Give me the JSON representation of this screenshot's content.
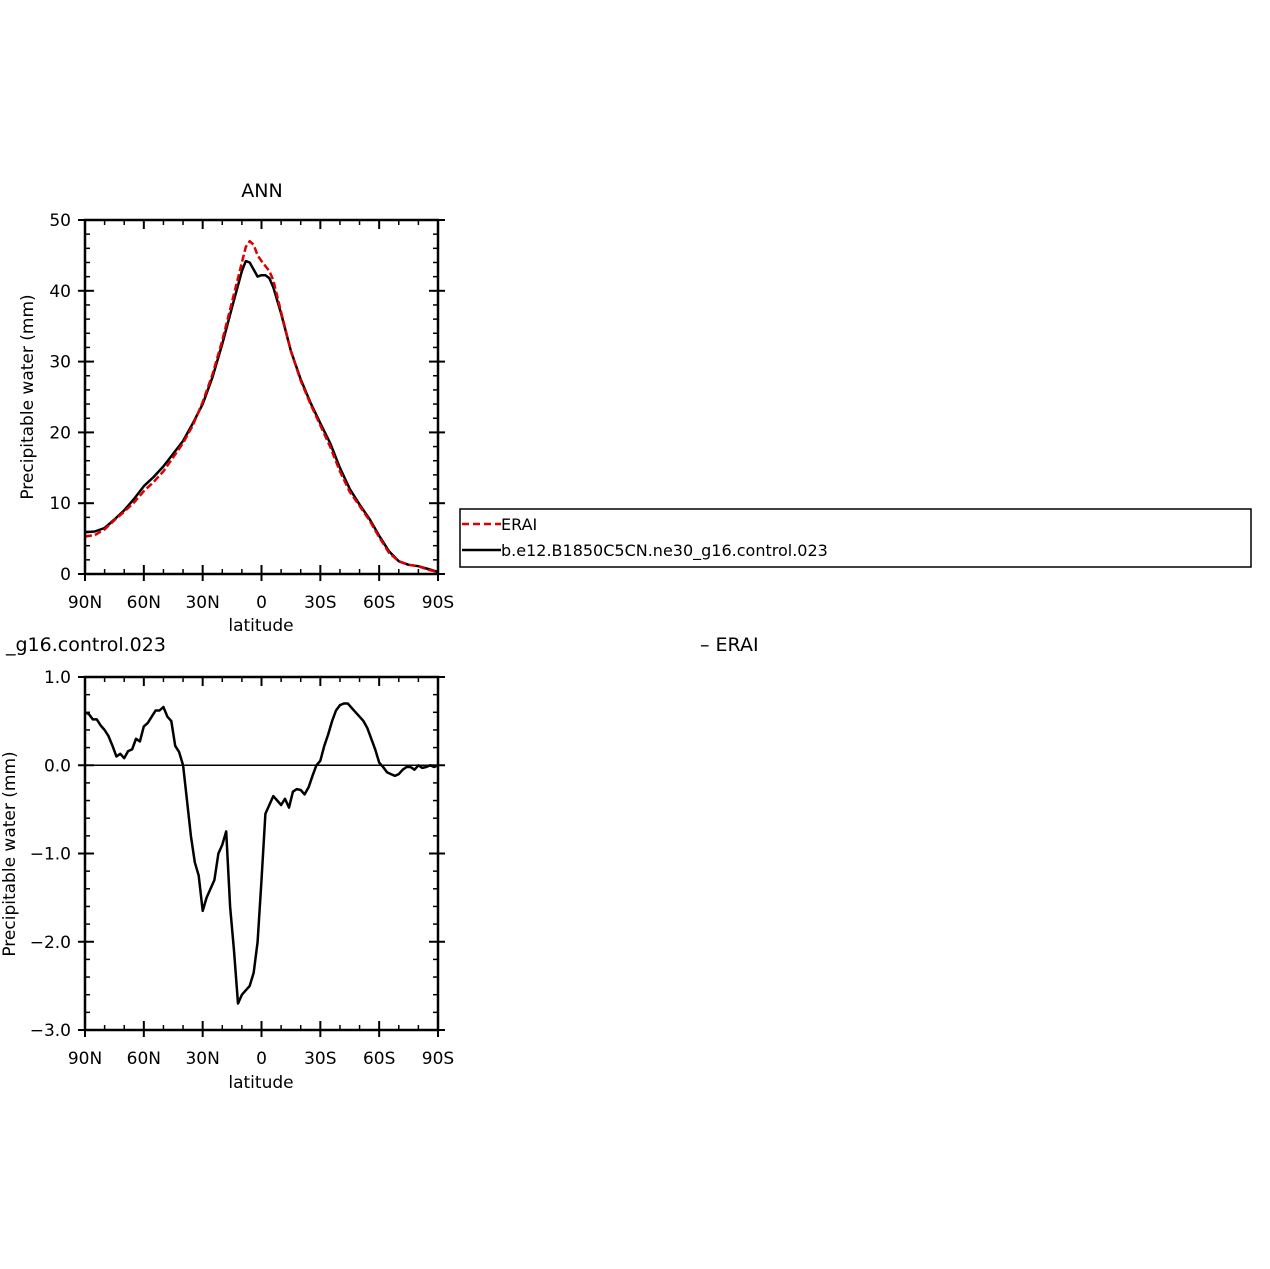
{
  "chart_data": [
    {
      "type": "line",
      "title": "ANN",
      "xlabel": "latitude",
      "ylabel": "Precipitable water (mm)",
      "xlim": [
        90,
        -90
      ],
      "ylim": [
        0,
        50
      ],
      "xticks": [
        90,
        60,
        30,
        0,
        -30,
        -60,
        -90
      ],
      "xtick_labels": [
        "90N",
        "60N",
        "30N",
        "0",
        "30S",
        "60S",
        "90S"
      ],
      "yticks": [
        0,
        10,
        20,
        30,
        40,
        50
      ],
      "ytick_labels": [
        "0",
        "10",
        "20",
        "30",
        "40",
        "50"
      ],
      "grid": false,
      "legend": "right",
      "series": [
        {
          "name": "ERAI",
          "color": "#dd0000",
          "style": "dashed",
          "x": [
            90,
            85,
            80,
            75,
            70,
            65,
            60,
            55,
            50,
            45,
            40,
            35,
            30,
            25,
            20,
            15,
            10,
            8,
            6,
            4,
            2,
            0,
            -2,
            -4,
            -6,
            -10,
            -15,
            -20,
            -25,
            -30,
            -35,
            -40,
            -45,
            -50,
            -55,
            -60,
            -65,
            -70,
            -75,
            -80,
            -85,
            -90
          ],
          "y": [
            5.3,
            5.5,
            6.3,
            7.6,
            8.8,
            10.1,
            11.7,
            13.0,
            14.5,
            16.5,
            18.5,
            21.0,
            24.3,
            28.2,
            33.0,
            38.5,
            44.0,
            46.2,
            47.0,
            46.5,
            45.0,
            44.2,
            43.5,
            42.8,
            41.5,
            37.0,
            31.5,
            27.3,
            24.0,
            21.0,
            18.0,
            14.5,
            11.6,
            9.6,
            7.6,
            5.2,
            3.0,
            1.8,
            1.3,
            1.1,
            0.6,
            0.3
          ]
        },
        {
          "name": "b.e12.B1850C5CN.ne30_g16.control.023",
          "color": "#000000",
          "style": "solid",
          "x": [
            90,
            85,
            80,
            75,
            70,
            65,
            60,
            55,
            50,
            45,
            40,
            35,
            30,
            25,
            20,
            15,
            10,
            8,
            6,
            4,
            2,
            0,
            -2,
            -4,
            -6,
            -10,
            -15,
            -20,
            -25,
            -30,
            -35,
            -40,
            -45,
            -50,
            -55,
            -60,
            -65,
            -70,
            -75,
            -80,
            -85,
            -90
          ],
          "y": [
            5.9,
            6.0,
            6.5,
            7.7,
            9.0,
            10.6,
            12.4,
            13.7,
            15.2,
            17.0,
            18.8,
            21.3,
            24.0,
            27.8,
            32.5,
            37.7,
            42.8,
            44.2,
            44.0,
            43.0,
            42.0,
            42.2,
            42.2,
            41.8,
            40.5,
            36.8,
            31.5,
            27.5,
            24.2,
            21.3,
            18.5,
            15.0,
            12.0,
            9.8,
            7.8,
            5.4,
            3.2,
            1.8,
            1.3,
            1.1,
            0.7,
            0.3
          ]
        }
      ]
    },
    {
      "type": "line",
      "title": "_g16.control.023",
      "title_right": "– ERAI",
      "xlabel": "latitude",
      "ylabel": "Precipitable water (mm)",
      "xlim": [
        90,
        -90
      ],
      "ylim": [
        -3.0,
        1.0
      ],
      "xticks": [
        90,
        60,
        30,
        0,
        -30,
        -60,
        -90
      ],
      "xtick_labels": [
        "90N",
        "60N",
        "30N",
        "0",
        "30S",
        "60S",
        "90S"
      ],
      "yticks": [
        1.0,
        0.0,
        -1.0,
        -2.0,
        -3.0
      ],
      "ytick_labels": [
        "1.0",
        "0.0",
        "−1.0",
        "−2.0",
        "−3.0"
      ],
      "grid": false,
      "zero_line": true,
      "series": [
        {
          "name": "",
          "color": "#000000",
          "style": "solid",
          "x": [
            90,
            88,
            86,
            84,
            82,
            80,
            78,
            76,
            74,
            72,
            70,
            68,
            66,
            64,
            62,
            60,
            58,
            56,
            54,
            52,
            50,
            48,
            46,
            44,
            42,
            40,
            38,
            36,
            34,
            32,
            30,
            28,
            26,
            24,
            22,
            20,
            18,
            16,
            14,
            12,
            10,
            8,
            6,
            4,
            2,
            0,
            -2,
            -4,
            -6,
            -8,
            -10,
            -12,
            -14,
            -16,
            -18,
            -20,
            -22,
            -24,
            -26,
            -28,
            -30,
            -32,
            -34,
            -36,
            -38,
            -40,
            -42,
            -44,
            -46,
            -48,
            -50,
            -52,
            -54,
            -56,
            -58,
            -60,
            -62,
            -64,
            -66,
            -68,
            -70,
            -72,
            -74,
            -76,
            -78,
            -80,
            -82,
            -84,
            -86,
            -88,
            -90
          ],
          "y": [
            0.6,
            0.58,
            0.52,
            0.52,
            0.45,
            0.4,
            0.33,
            0.22,
            0.1,
            0.13,
            0.08,
            0.16,
            0.18,
            0.3,
            0.27,
            0.44,
            0.48,
            0.55,
            0.62,
            0.62,
            0.66,
            0.55,
            0.5,
            0.22,
            0.15,
            0.0,
            -0.4,
            -0.8,
            -1.1,
            -1.25,
            -1.65,
            -1.5,
            -1.4,
            -1.3,
            -1.0,
            -0.9,
            -0.75,
            -1.6,
            -2.1,
            -2.7,
            -2.6,
            -2.55,
            -2.5,
            -2.35,
            -2.0,
            -1.3,
            -0.55,
            -0.45,
            -0.35,
            -0.4,
            -0.45,
            -0.38,
            -0.48,
            -0.3,
            -0.27,
            -0.28,
            -0.33,
            -0.25,
            -0.12,
            0.0,
            0.05,
            0.22,
            0.35,
            0.5,
            0.62,
            0.68,
            0.7,
            0.7,
            0.65,
            0.6,
            0.55,
            0.5,
            0.42,
            0.3,
            0.18,
            0.03,
            -0.02,
            -0.08,
            -0.1,
            -0.12,
            -0.1,
            -0.05,
            -0.02,
            -0.02,
            -0.05,
            0.0,
            -0.03,
            -0.02,
            0.0,
            -0.02,
            0.0
          ]
        }
      ]
    }
  ]
}
